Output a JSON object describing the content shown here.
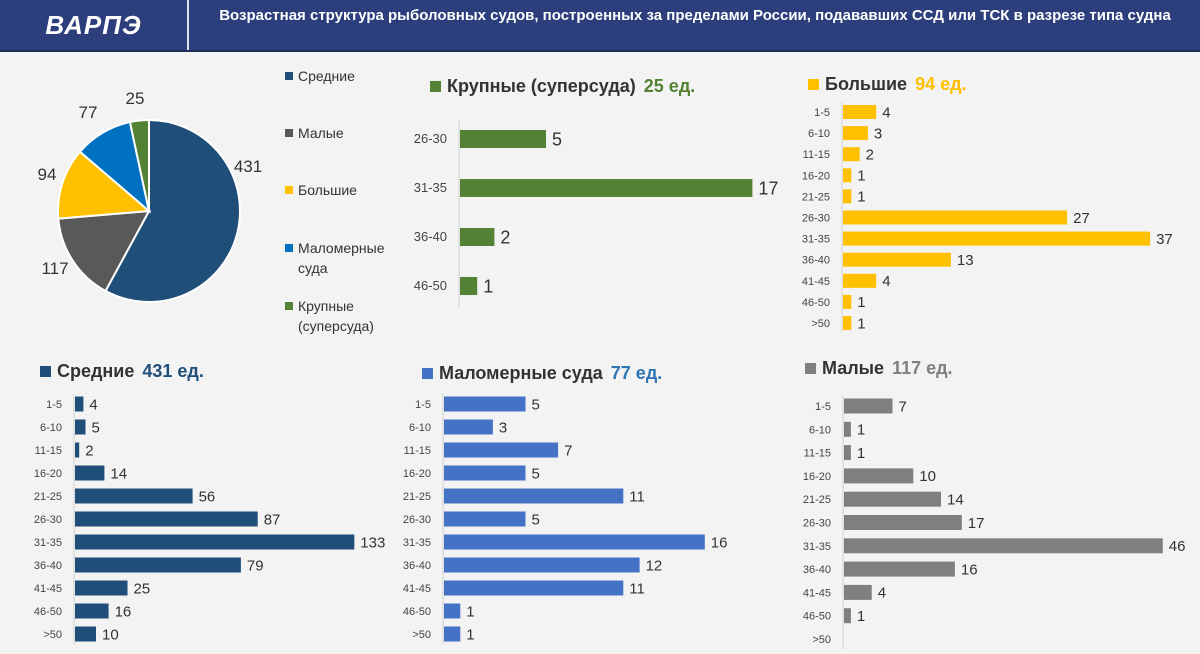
{
  "header": {
    "logo": "ВАРПЭ",
    "title": "Возрастная структура рыболовных судов, построенных за пределами России, подававших ССД или ТСК в разрезе типа судна"
  },
  "chart_data": [
    {
      "type": "pie",
      "slices": [
        {
          "name": "Средние",
          "value": 431,
          "color": "#1f4e79"
        },
        {
          "name": "Малые",
          "value": 117,
          "color": "#595959"
        },
        {
          "name": "Большие",
          "value": 94,
          "color": "#ffc000"
        },
        {
          "name": "Маломерные суда",
          "value": 77,
          "color": "#0070c0"
        },
        {
          "name": "Крупные (суперсуда)",
          "value": 25,
          "color": "#548235"
        }
      ],
      "legend": [
        "Средние",
        "Малые",
        "Большие",
        "Маломерные суда",
        "Крупные (суперсуда)"
      ],
      "legend_placement": "right"
    },
    {
      "type": "bar",
      "orientation": "horizontal",
      "title": "Крупные (суперсуда)",
      "total": "25 ед.",
      "color": "#548235",
      "categories": [
        "26-30",
        "31-35",
        "36-40",
        "46-50"
      ],
      "values": [
        5,
        17,
        2,
        1
      ]
    },
    {
      "type": "bar",
      "orientation": "horizontal",
      "title": "Большие",
      "total": "94 ед.",
      "color": "#ffc000",
      "categories": [
        "1-5",
        "6-10",
        "11-15",
        "16-20",
        "21-25",
        "26-30",
        "31-35",
        "36-40",
        "41-45",
        "46-50",
        ">50"
      ],
      "values": [
        4,
        3,
        2,
        1,
        1,
        27,
        37,
        13,
        4,
        1,
        1
      ]
    },
    {
      "type": "bar",
      "orientation": "horizontal",
      "title": "Средние",
      "total": "431 ед.",
      "color": "#1f4e79",
      "categories": [
        "1-5",
        "6-10",
        "11-15",
        "16-20",
        "21-25",
        "26-30",
        "31-35",
        "36-40",
        "41-45",
        "46-50",
        ">50"
      ],
      "values": [
        4,
        5,
        2,
        14,
        56,
        87,
        133,
        79,
        25,
        16,
        10
      ]
    },
    {
      "type": "bar",
      "orientation": "horizontal",
      "title": "Маломерные суда",
      "total": "77 ед.",
      "color": "#4472c4",
      "categories": [
        "1-5",
        "6-10",
        "11-15",
        "16-20",
        "21-25",
        "26-30",
        "31-35",
        "36-40",
        "41-45",
        "46-50",
        ">50"
      ],
      "values": [
        5,
        3,
        7,
        5,
        11,
        5,
        16,
        12,
        11,
        1,
        1
      ]
    },
    {
      "type": "bar",
      "orientation": "horizontal",
      "title": "Малые",
      "total": "117 ед.",
      "color": "#7f7f7f",
      "categories": [
        "1-5",
        "6-10",
        "11-15",
        "16-20",
        "21-25",
        "26-30",
        "31-35",
        "36-40",
        "41-45",
        "46-50",
        ">50"
      ],
      "values": [
        7,
        1,
        1,
        10,
        14,
        17,
        46,
        16,
        4,
        1,
        null
      ]
    }
  ]
}
